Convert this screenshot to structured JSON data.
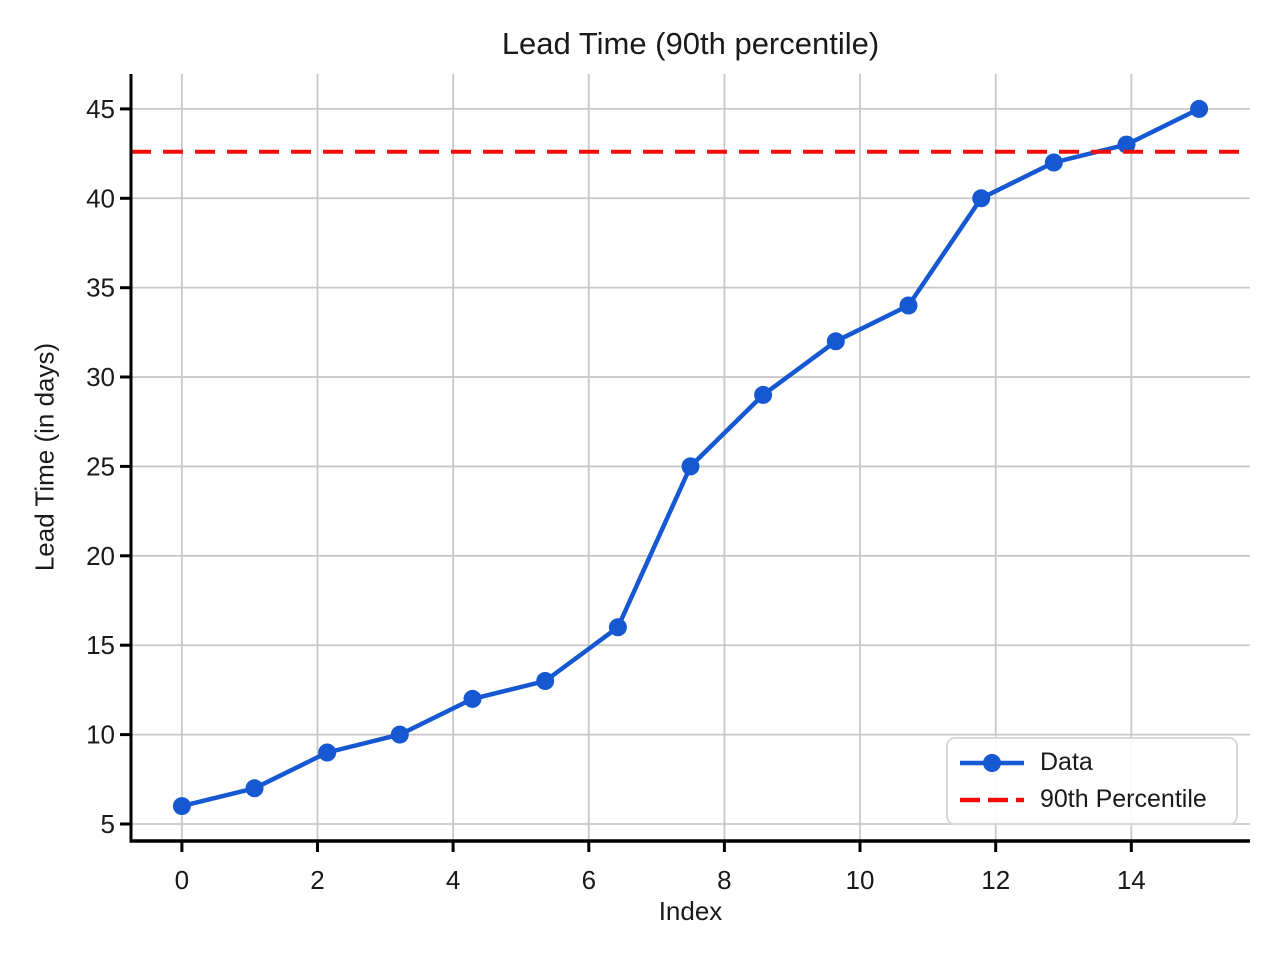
{
  "chart_data": {
    "type": "line",
    "title": "Lead Time (90th percentile)",
    "xlabel": "Index",
    "ylabel": "Lead Time (in days)",
    "x": [
      0,
      1.071,
      2.143,
      3.214,
      4.286,
      5.357,
      6.429,
      7.5,
      8.571,
      9.643,
      10.714,
      11.786,
      12.857,
      13.929,
      15
    ],
    "series": [
      {
        "name": "Data",
        "type": "line",
        "color": "#1657d2",
        "marker": "circle",
        "values": [
          6,
          7,
          9,
          10,
          12,
          13,
          16,
          25,
          29,
          32,
          34,
          40,
          42,
          43,
          45
        ]
      },
      {
        "name": "90th Percentile",
        "type": "hline",
        "color": "#f20d0d",
        "line_style": "dashed",
        "value": 42.6
      }
    ],
    "xticks": [
      0,
      2,
      4,
      6,
      8,
      10,
      12,
      14
    ],
    "yticks": [
      5,
      10,
      15,
      20,
      25,
      30,
      35,
      40,
      45
    ],
    "xlim": [
      -0.75,
      15.75
    ],
    "ylim": [
      4.05,
      46.95
    ],
    "grid": true,
    "legend_position": "lower right",
    "colors": {
      "grid": "#c8c8c8",
      "axis": "#000000",
      "text": "#1a1a1a",
      "background": "#ffffff"
    }
  }
}
